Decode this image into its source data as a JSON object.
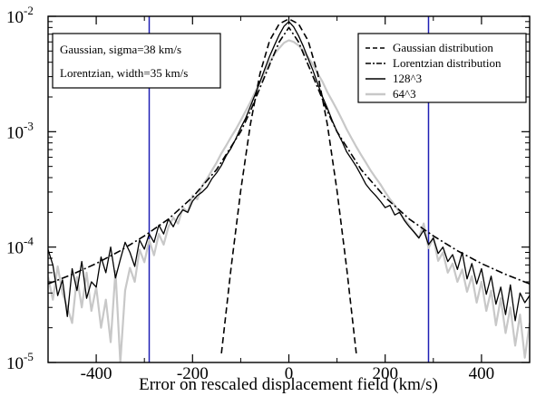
{
  "chart_data": {
    "type": "line",
    "xlabel": "Error on rescaled displacement field (km/s)",
    "ylabel": "",
    "xlim": [
      -500,
      500
    ],
    "ylim": [
      1e-05,
      0.01
    ],
    "yscale": "log",
    "x_ticks": [
      -400,
      -200,
      0,
      200,
      400
    ],
    "x_tick_labels": [
      "-400",
      "-200",
      "0",
      "200",
      "400"
    ],
    "y_ticks": [
      1e-05,
      0.0001,
      0.001,
      0.01
    ],
    "y_tick_labels": [
      {
        "base": "10",
        "exp": "-5"
      },
      {
        "base": "10",
        "exp": "-4"
      },
      {
        "base": "10",
        "exp": "-3"
      },
      {
        "base": "10",
        "exp": "-2"
      }
    ],
    "vertical_lines": [
      -290,
      290
    ],
    "vertical_line_color": "#1f1fb4",
    "annotation_lines": [
      "Gaussian, sigma=38 km/s",
      "Lorentzian, width=35 km/s"
    ],
    "legend_placement": "top-right",
    "series": [
      {
        "name": "Gaussian distribution",
        "style": "dashed",
        "color": "#000000",
        "x": [
          -140,
          -120,
          -100,
          -80,
          -60,
          -40,
          -20,
          0,
          20,
          40,
          60,
          80,
          100,
          120,
          140
        ],
        "y": [
          1.2e-05,
          6.6e-05,
          0.000308,
          0.00115,
          0.00318,
          0.00615,
          0.0086,
          0.0095,
          0.0086,
          0.00615,
          0.00318,
          0.00115,
          0.000308,
          6.6e-05,
          1.2e-05
        ]
      },
      {
        "name": "Lorentzian distribution",
        "style": "dash-dot",
        "color": "#000000",
        "x": [
          -500,
          -450,
          -400,
          -350,
          -300,
          -250,
          -200,
          -150,
          -100,
          -80,
          -60,
          -40,
          -20,
          0,
          20,
          40,
          60,
          80,
          100,
          150,
          200,
          250,
          300,
          350,
          400,
          450,
          500
        ],
        "y": [
          4.8e-05,
          5.8e-05,
          7.2e-05,
          9.3e-05,
          0.000125,
          0.000175,
          0.00027,
          0.00047,
          0.001,
          0.0015,
          0.0024,
          0.0038,
          0.006,
          0.008,
          0.006,
          0.0038,
          0.0024,
          0.0015,
          0.001,
          0.00047,
          0.00027,
          0.000175,
          0.000125,
          9.3e-05,
          7.2e-05,
          5.8e-05,
          4.8e-05
        ]
      },
      {
        "name": "128^3",
        "style": "solid",
        "color": "#000000",
        "x": [
          -500,
          -490,
          -480,
          -470,
          -460,
          -450,
          -440,
          -430,
          -420,
          -410,
          -400,
          -390,
          -380,
          -370,
          -360,
          -350,
          -340,
          -330,
          -320,
          -310,
          -300,
          -290,
          -280,
          -270,
          -260,
          -250,
          -240,
          -230,
          -220,
          -210,
          -200,
          -190,
          -180,
          -170,
          -160,
          -150,
          -140,
          -130,
          -120,
          -110,
          -100,
          -90,
          -80,
          -70,
          -60,
          -50,
          -40,
          -30,
          -20,
          -10,
          0,
          10,
          20,
          30,
          40,
          50,
          60,
          70,
          80,
          90,
          100,
          110,
          120,
          130,
          140,
          150,
          160,
          170,
          180,
          190,
          200,
          210,
          220,
          230,
          240,
          250,
          260,
          270,
          280,
          290,
          300,
          310,
          320,
          330,
          340,
          350,
          360,
          370,
          380,
          390,
          400,
          410,
          420,
          430,
          440,
          450,
          460,
          470,
          480,
          490,
          500
        ],
        "y": [
          9.5e-05,
          7e-05,
          3.8e-05,
          5.2e-05,
          2.5e-05,
          6.5e-05,
          4.2e-05,
          7.5e-05,
          3.6e-05,
          5e-05,
          4.5e-05,
          8.2e-05,
          6e-05,
          0.0001,
          5.4e-05,
          7.8e-05,
          0.00011,
          9e-05,
          6.8e-05,
          0.000115,
          9.6e-05,
          0.00013,
          0.00011,
          0.000155,
          0.00013,
          0.000175,
          0.00015,
          0.000185,
          0.00021,
          0.0002,
          0.00025,
          0.00028,
          0.0003,
          0.00033,
          0.00039,
          0.00044,
          0.00051,
          0.00062,
          0.00072,
          0.00087,
          0.00108,
          0.0013,
          0.00165,
          0.0021,
          0.0027,
          0.0035,
          0.0045,
          0.0056,
          0.0069,
          0.0082,
          0.009,
          0.0081,
          0.0068,
          0.0055,
          0.0043,
          0.0034,
          0.0026,
          0.002,
          0.0016,
          0.00125,
          0.001,
          0.00083,
          0.00067,
          0.00058,
          0.0005,
          0.00042,
          0.00035,
          0.00031,
          0.00028,
          0.00025,
          0.00022,
          0.00023,
          0.00019,
          0.0002,
          0.00017,
          0.00015,
          0.000135,
          0.00012,
          0.00014,
          0.000105,
          0.00012,
          8.8e-05,
          0.0001,
          7.5e-05,
          8.6e-05,
          6.4e-05,
          9e-05,
          5.3e-05,
          7.2e-05,
          4.8e-05,
          6.5e-05,
          3.9e-05,
          5.6e-05,
          3.2e-05,
          4.5e-05,
          2.6e-05,
          4.7e-05,
          2.3e-05,
          4e-05,
          3.3e-05,
          3.8e-05
        ]
      },
      {
        "name": "64^3",
        "style": "solid",
        "color": "#c8c8c8",
        "x": [
          -500,
          -490,
          -480,
          -470,
          -460,
          -450,
          -440,
          -430,
          -420,
          -410,
          -400,
          -390,
          -380,
          -370,
          -360,
          -350,
          -340,
          -330,
          -320,
          -310,
          -300,
          -290,
          -280,
          -270,
          -260,
          -250,
          -240,
          -230,
          -220,
          -210,
          -200,
          -190,
          -180,
          -170,
          -160,
          -150,
          -140,
          -130,
          -120,
          -110,
          -100,
          -90,
          -80,
          -70,
          -60,
          -50,
          -40,
          -30,
          -20,
          -10,
          0,
          10,
          20,
          30,
          40,
          50,
          60,
          70,
          80,
          90,
          100,
          110,
          120,
          130,
          140,
          150,
          160,
          170,
          180,
          190,
          200,
          210,
          220,
          230,
          240,
          250,
          260,
          270,
          280,
          290,
          300,
          310,
          320,
          330,
          340,
          350,
          360,
          370,
          380,
          390,
          400,
          410,
          420,
          430,
          440,
          450,
          460,
          470,
          480,
          490,
          500
        ],
        "y": [
          5.5e-05,
          3.5e-05,
          6.8e-05,
          4e-05,
          3e-05,
          2.2e-05,
          5.5e-05,
          3e-05,
          6e-05,
          2.8e-05,
          4.5e-05,
          2e-05,
          3.5e-05,
          1.5e-05,
          6.2e-05,
          1e-05,
          4.2e-05,
          6.6e-05,
          5e-05,
          9.5e-05,
          7.4e-05,
          0.000115,
          8.5e-05,
          0.00013,
          0.000105,
          0.00015,
          0.00018,
          0.00016,
          0.00022,
          0.0002,
          0.00028,
          0.00026,
          0.00034,
          0.00039,
          0.00046,
          0.00054,
          0.00065,
          0.00076,
          0.0009,
          0.00105,
          0.00125,
          0.0015,
          0.0018,
          0.0022,
          0.0027,
          0.0033,
          0.004,
          0.0047,
          0.0053,
          0.0059,
          0.0062,
          0.006,
          0.0056,
          0.005,
          0.0044,
          0.0038,
          0.0032,
          0.0027,
          0.0022,
          0.00185,
          0.00155,
          0.00128,
          0.00105,
          0.00088,
          0.00074,
          0.00063,
          0.00054,
          0.00046,
          0.0004,
          0.00035,
          0.0003,
          0.00026,
          0.00023,
          0.0002,
          0.000175,
          0.000155,
          0.000135,
          0.00012,
          0.00016,
          9.8e-05,
          0.00012,
          7.6e-05,
          9e-05,
          6e-05,
          7.2e-05,
          5e-05,
          6.4e-05,
          4.1e-05,
          5.6e-05,
          3.3e-05,
          5e-05,
          2.8e-05,
          4.2e-05,
          2.1e-05,
          3.6e-05,
          1.8e-05,
          3e-05,
          1.4e-05,
          2.6e-05,
          1.1e-05,
          2.2e-05
        ]
      }
    ]
  }
}
